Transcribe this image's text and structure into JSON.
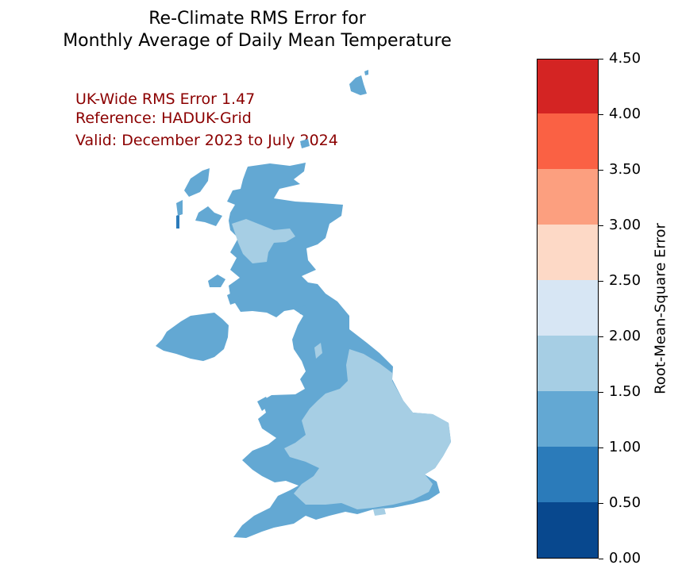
{
  "title": {
    "line1": "Re-Climate RMS Error for",
    "line2": "Monthly Average of Daily Mean Temperature"
  },
  "annotations": {
    "uk_wide": "UK-Wide RMS Error 1.47",
    "reference": "Reference: HADUK-Grid",
    "valid": "Valid: December 2023 to July 2024"
  },
  "colorbar": {
    "label": "Root-Mean-Square Error",
    "ticks": [
      "0.00",
      "0.50",
      "1.00",
      "1.50",
      "2.00",
      "2.50",
      "3.00",
      "3.50",
      "4.00",
      "4.50"
    ],
    "colors": [
      "#08488e",
      "#2b7bba",
      "#63a8d3",
      "#a6cee4",
      "#d7e6f4",
      "#fdd9c6",
      "#fc9f7f",
      "#fa6144",
      "#d42423"
    ]
  },
  "map_colors": {
    "base": "#63a8d3",
    "low": "#a6cee4",
    "dark": "#2b7bba"
  }
}
